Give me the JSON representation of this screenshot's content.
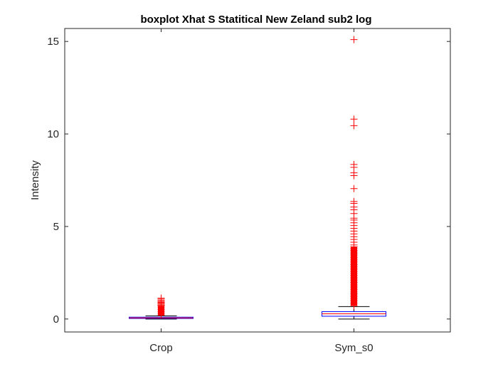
{
  "chart_data": {
    "type": "boxplot",
    "title": "boxplot Xhat S Statitical New Zeland sub2 log",
    "xlabel": "",
    "ylabel": "Intensity",
    "ylim": [
      -0.7,
      15.7
    ],
    "yticks": [
      0,
      5,
      10,
      15
    ],
    "categories": [
      "Crop",
      "Sym_s0"
    ],
    "grid": false,
    "colors": {
      "box": "#0000ff",
      "median": "#ff0000",
      "whisker": "#000000",
      "outlier": "#ff0000",
      "axes": "#262626"
    },
    "boxes": [
      {
        "category": "Crop",
        "whisker_low": 0.0,
        "q1": 0.03,
        "median": 0.06,
        "q3": 0.1,
        "whisker_high": 0.17,
        "outliers": {
          "dense_from": 0.18,
          "dense_to": 0.7,
          "discrete": [
            0.75,
            0.8,
            0.85,
            0.9,
            0.95,
            1.0,
            1.07,
            1.13
          ]
        }
      },
      {
        "category": "Sym_s0",
        "whisker_low": 0.0,
        "q1": 0.15,
        "median": 0.28,
        "q3": 0.4,
        "whisker_high": 0.67,
        "outliers": {
          "dense_from": 0.7,
          "dense_to": 3.9,
          "discrete": [
            4.0,
            4.15,
            4.3,
            4.45,
            4.6,
            4.75,
            4.9,
            5.05,
            5.2,
            5.35,
            5.45,
            5.7,
            5.9,
            6.05,
            6.25,
            6.35,
            7.05,
            7.75,
            7.9,
            8.2,
            8.35,
            10.45,
            10.8,
            15.1
          ]
        }
      }
    ]
  }
}
